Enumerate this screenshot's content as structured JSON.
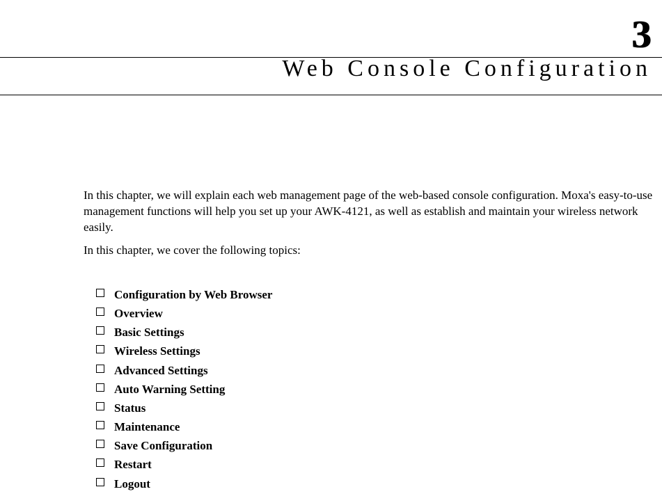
{
  "chapter": {
    "number": "3",
    "title": "Web Console Configuration",
    "title_fontsize": 34,
    "title_letter_spacing": 6,
    "number_fontsize": 56,
    "number_color": "#000000"
  },
  "paragraphs": {
    "p1": "In this chapter, we will explain each web management page of the web-based console configuration. Moxa's easy-to-use management functions will help you set up your AWK-4121, as well as establish and maintain your wireless network easily.",
    "p2": "In this chapter, we cover the following topics:"
  },
  "topics": [
    "Configuration by Web Browser",
    "Overview",
    "Basic Settings",
    "Wireless Settings",
    "Advanced Settings",
    "Auto Warning Setting",
    "Status",
    "Maintenance",
    "Save Configuration",
    "Restart",
    "Logout"
  ],
  "style": {
    "body_font": "Times New Roman",
    "body_fontsize": 17,
    "topic_fontsize": 17,
    "topic_fontweight": "bold",
    "text_color": "#000000",
    "background_color": "#ffffff",
    "rule_color": "#000000",
    "bullet_border": "#000000",
    "bullet_size": 12
  }
}
